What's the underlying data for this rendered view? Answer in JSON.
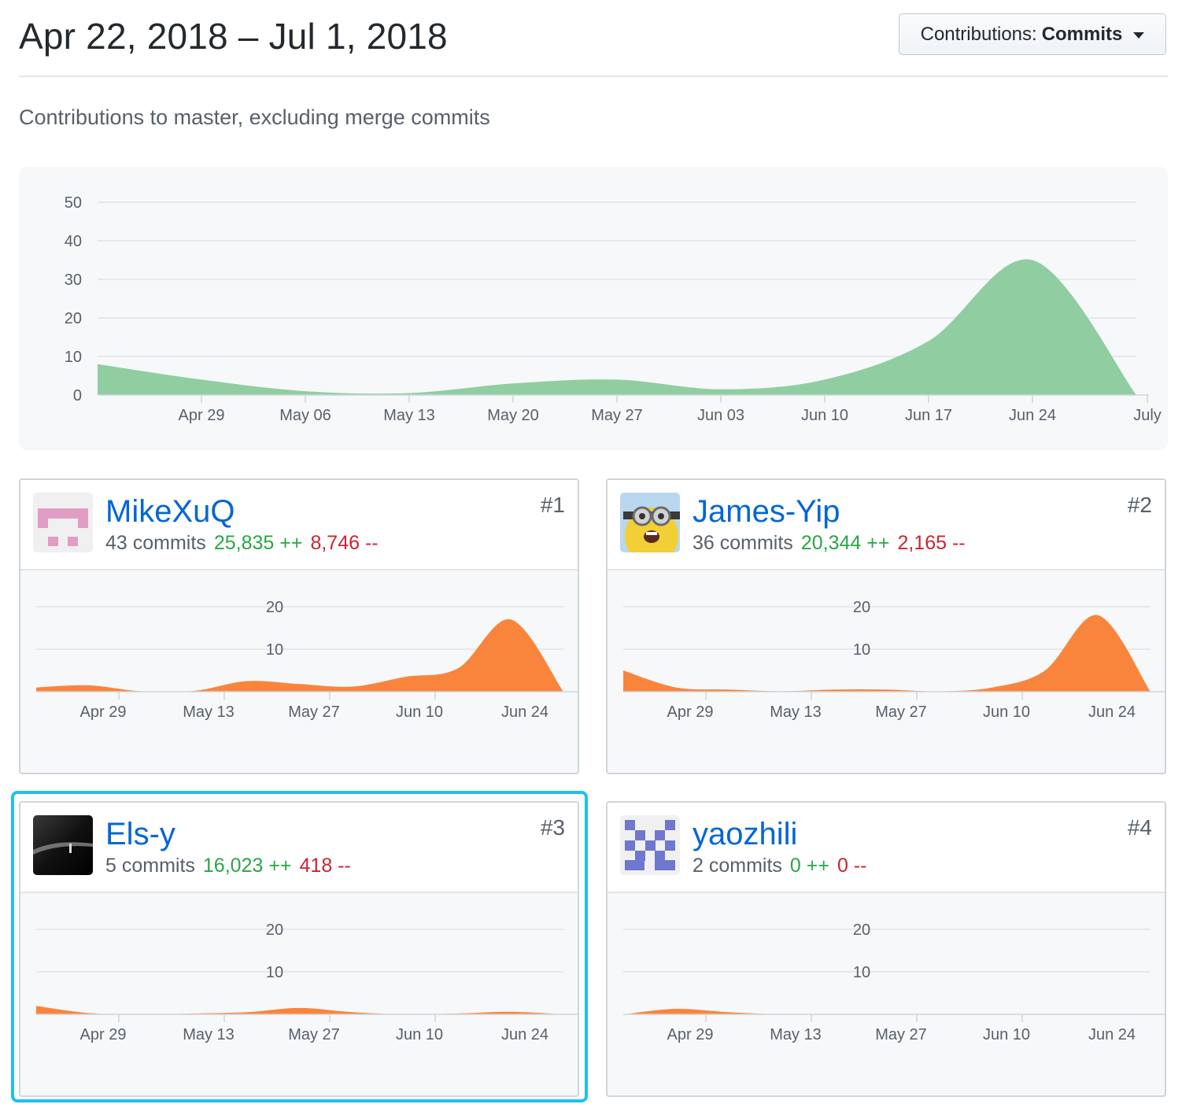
{
  "header": {
    "date_range": "Apr 22, 2018 – Jul 1, 2018",
    "contrib_prefix": "Contributions:",
    "contrib_value": "Commits"
  },
  "subtitle": "Contributions to master, excluding merge commits",
  "colors": {
    "main_area": "#90cea1",
    "card_area": "#f9853c",
    "link": "#0366d6",
    "additions": "#28a745",
    "deletions": "#cb2431",
    "highlight": "#1ec0ef"
  },
  "chart_data": [
    {
      "type": "area",
      "yticks": [
        0,
        10,
        20,
        30,
        40,
        50
      ],
      "ylim": [
        0,
        50
      ],
      "xlabels": [
        "Apr 29",
        "May 06",
        "May 13",
        "May 20",
        "May 27",
        "Jun 03",
        "Jun 10",
        "Jun 17",
        "Jun 24",
        "July"
      ],
      "x": [
        "Apr 22",
        "Apr 29",
        "May 06",
        "May 13",
        "May 20",
        "May 27",
        "Jun 03",
        "Jun 10",
        "Jun 17",
        "Jun 24",
        "Jul 1"
      ],
      "values": [
        8,
        4,
        1,
        0.5,
        3,
        4,
        1.5,
        4,
        14,
        35,
        0
      ]
    },
    {
      "type": "area",
      "contributor": "MikeXuQ",
      "yticks": [
        10,
        20
      ],
      "xlabels": [
        "Apr 29",
        "May 13",
        "May 27",
        "Jun 10",
        "Jun 24"
      ],
      "x": [
        "Apr 22",
        "Apr 29",
        "May 06",
        "May 13",
        "May 20",
        "May 27",
        "Jun 03",
        "Jun 10",
        "Jun 17",
        "Jun 24",
        "Jul 1"
      ],
      "values": [
        1,
        1.5,
        0.1,
        0.2,
        2.5,
        1.8,
        1.2,
        3.5,
        5.5,
        17,
        0
      ]
    },
    {
      "type": "area",
      "contributor": "James-Yip",
      "yticks": [
        10,
        20
      ],
      "xlabels": [
        "Apr 29",
        "May 13",
        "May 27",
        "Jun 10",
        "Jun 24"
      ],
      "x": [
        "Apr 22",
        "Apr 29",
        "May 06",
        "May 13",
        "May 20",
        "May 27",
        "Jun 03",
        "Jun 10",
        "Jun 17",
        "Jun 24",
        "Jul 1"
      ],
      "values": [
        5,
        1,
        0.5,
        0.1,
        0.5,
        0.5,
        0.1,
        1,
        5,
        18,
        0
      ]
    },
    {
      "type": "area",
      "contributor": "Els-y",
      "yticks": [
        10,
        20
      ],
      "xlabels": [
        "Apr 29",
        "May 13",
        "May 27",
        "Jun 10",
        "Jun 24"
      ],
      "x": [
        "Apr 22",
        "Apr 29",
        "May 06",
        "May 13",
        "May 20",
        "May 27",
        "Jun 03",
        "Jun 10",
        "Jun 17",
        "Jun 24",
        "Jul 1"
      ],
      "values": [
        2,
        0.3,
        0,
        0.2,
        0.5,
        1.5,
        0.5,
        0,
        0.2,
        0.6,
        0
      ]
    },
    {
      "type": "area",
      "contributor": "yaozhili",
      "yticks": [
        10,
        20
      ],
      "xlabels": [
        "Apr 29",
        "May 13",
        "May 27",
        "Jun 10",
        "Jun 24"
      ],
      "x": [
        "Apr 22",
        "Apr 29",
        "May 06",
        "May 13",
        "May 20",
        "May 27",
        "Jun 03",
        "Jun 10",
        "Jun 17",
        "Jun 24",
        "Jul 1"
      ],
      "values": [
        0,
        1.3,
        0.5,
        0,
        0,
        0,
        0,
        0,
        0,
        0,
        0
      ]
    }
  ],
  "contributors": [
    {
      "rank": "#1",
      "name": "MikeXuQ",
      "commits": "43 commits",
      "additions": "25,835 ++",
      "deletions": "8,746 --",
      "avatar": "identicon-pink"
    },
    {
      "rank": "#2",
      "name": "James-Yip",
      "commits": "36 commits",
      "additions": "20,344 ++",
      "deletions": "2,165 --",
      "avatar": "minion-photo"
    },
    {
      "rank": "#3",
      "name": "Els-y",
      "commits": "5 commits",
      "additions": "16,023 ++",
      "deletions": "418 --",
      "avatar": "dark-photo"
    },
    {
      "rank": "#4",
      "name": "yaozhili",
      "commits": "2 commits",
      "additions": "0 ++",
      "deletions": "0 --",
      "avatar": "identicon-purple"
    }
  ]
}
